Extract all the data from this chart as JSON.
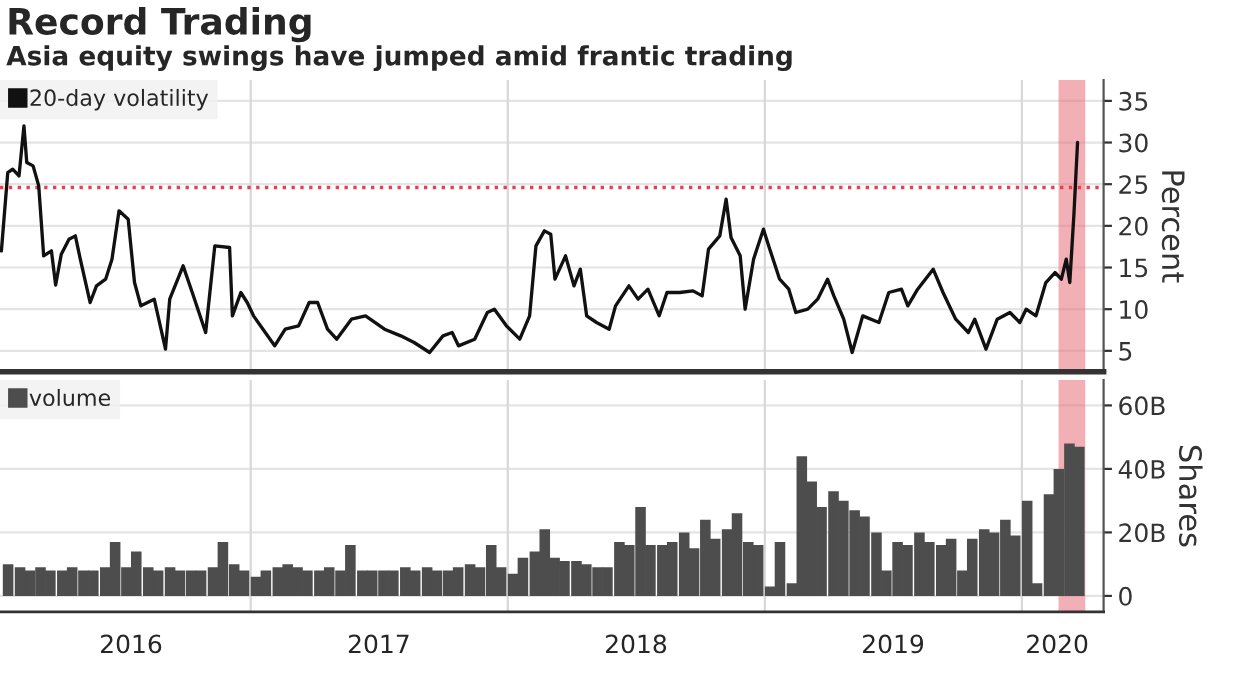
{
  "chart_data": [
    {
      "type": "line",
      "title": "Record Trading",
      "subtitle": "Asia equity swings have jumped amid frantic trading",
      "ylabel": "Percent",
      "xlim": [
        "2016-01-11",
        "2020-04-26"
      ],
      "xticks": [
        {
          "value": "2017-01-01",
          "label": null
        },
        {
          "value": "2018-01-01",
          "label": null
        },
        {
          "value": "2019-01-01",
          "label": null
        },
        {
          "value": "2020-01-01",
          "label": null
        }
      ],
      "ylim": [
        2.5,
        37.5
      ],
      "yticks": [
        5,
        10,
        15,
        20,
        25,
        30,
        35
      ],
      "tick_labels": "y",
      "grid": true,
      "legend": "top left",
      "line_style": "solid",
      "series": [
        {
          "name": "20-day volatility",
          "color": "#111111",
          "x": [
            "2016-01-13",
            "2016-01-22",
            "2016-01-29",
            "2016-02-07",
            "2016-02-14",
            "2016-02-18",
            "2016-02-27",
            "2016-03-06",
            "2016-03-13",
            "2016-03-24",
            "2016-03-30",
            "2016-04-07",
            "2016-04-18",
            "2016-04-27",
            "2016-05-04",
            "2016-05-18",
            "2016-05-27",
            "2016-06-09",
            "2016-06-18",
            "2016-06-28",
            "2016-07-11",
            "2016-07-20",
            "2016-07-29",
            "2016-08-17",
            "2016-09-02",
            "2016-09-08",
            "2016-09-27",
            "2016-10-10",
            "2016-10-29",
            "2016-11-11",
            "2016-12-02",
            "2016-12-06",
            "2016-12-18",
            "2016-12-27",
            "2017-01-05",
            "2017-02-04",
            "2017-02-19",
            "2017-03-10",
            "2017-03-25",
            "2017-04-06",
            "2017-04-20",
            "2017-05-03",
            "2017-05-24",
            "2017-06-13",
            "2017-07-10",
            "2017-08-02",
            "2017-08-21",
            "2017-09-12",
            "2017-10-01",
            "2017-10-14",
            "2017-10-23",
            "2017-11-15",
            "2017-12-03",
            "2017-12-13",
            "2017-12-30",
            "2018-01-18",
            "2018-02-01",
            "2018-02-10",
            "2018-02-22",
            "2018-03-03",
            "2018-03-09",
            "2018-03-24",
            "2018-04-05",
            "2018-04-14",
            "2018-04-23",
            "2018-05-07",
            "2018-05-25",
            "2018-06-03",
            "2018-06-22",
            "2018-07-05",
            "2018-07-19",
            "2018-08-04",
            "2018-08-15",
            "2018-09-02",
            "2018-09-21",
            "2018-10-04",
            "2018-10-13",
            "2018-10-29",
            "2018-11-07",
            "2018-11-14",
            "2018-11-27",
            "2018-12-04",
            "2018-12-16",
            "2018-12-30",
            "2019-01-08",
            "2019-01-22",
            "2019-02-04",
            "2019-02-14",
            "2019-03-03",
            "2019-03-17",
            "2019-03-31",
            "2019-04-09",
            "2019-04-23",
            "2019-05-05",
            "2019-05-20",
            "2019-06-12",
            "2019-06-26",
            "2019-07-14",
            "2019-07-23",
            "2019-08-06",
            "2019-08-28",
            "2019-09-11",
            "2019-09-29",
            "2019-10-17",
            "2019-10-26",
            "2019-11-11",
            "2019-11-27",
            "2019-12-15",
            "2019-12-29",
            "2020-01-07",
            "2020-01-21",
            "2020-02-04",
            "2020-02-17",
            "2020-02-26",
            "2020-03-04",
            "2020-03-09",
            "2020-03-15",
            "2020-03-20"
          ],
          "values": [
            17.0,
            26.4,
            26.8,
            26.0,
            32.0,
            27.6,
            27.2,
            24.8,
            16.4,
            17.0,
            12.9,
            16.6,
            18.4,
            18.8,
            16.0,
            10.8,
            12.8,
            13.6,
            16.0,
            21.8,
            20.8,
            13.2,
            10.4,
            11.2,
            5.2,
            11.2,
            15.2,
            12.0,
            7.2,
            17.6,
            17.4,
            9.2,
            12.0,
            10.8,
            9.2,
            5.6,
            7.6,
            8.0,
            10.8,
            10.8,
            7.6,
            6.4,
            8.8,
            9.2,
            7.6,
            6.8,
            6.0,
            4.8,
            6.8,
            7.2,
            5.6,
            6.4,
            9.6,
            10.0,
            8.0,
            6.4,
            9.2,
            17.6,
            19.4,
            19.0,
            13.6,
            16.4,
            12.8,
            14.8,
            9.2,
            8.4,
            7.6,
            10.4,
            12.8,
            11.2,
            12.4,
            9.2,
            12.0,
            12.0,
            12.2,
            11.6,
            17.2,
            18.8,
            23.2,
            18.6,
            16.4,
            10.0,
            16.0,
            19.6,
            17.2,
            13.6,
            12.4,
            9.6,
            10.0,
            11.2,
            13.6,
            11.6,
            8.8,
            4.8,
            9.2,
            8.4,
            12.0,
            12.4,
            10.4,
            12.4,
            14.8,
            12.0,
            8.8,
            7.2,
            8.8,
            5.2,
            8.8,
            9.6,
            8.4,
            10.0,
            9.2,
            13.2,
            14.4,
            13.6,
            16.0,
            13.2,
            21.6,
            30.0
          ]
        }
      ],
      "ref_lines": [
        {
          "axis": "y",
          "value": 24.6,
          "color": "#e8404f",
          "line_style": "dotted"
        }
      ],
      "bands": [
        {
          "axis": "x",
          "from": "2020-02-24",
          "to": "2020-03-29",
          "color": "#e8707a"
        }
      ]
    },
    {
      "type": "bar",
      "ylabel": "Shares",
      "xlim": [
        "2016-01-11",
        "2020-04-26"
      ],
      "xticks": [
        {
          "value": "2016-07-15",
          "label": "2016"
        },
        {
          "value": "2017-01-01",
          "label": null
        },
        {
          "value": "2017-07-02",
          "label": "2017"
        },
        {
          "value": "2018-01-01",
          "label": null
        },
        {
          "value": "2018-07-02",
          "label": "2018"
        },
        {
          "value": "2019-01-01",
          "label": null
        },
        {
          "value": "2019-07-02",
          "label": "2019"
        },
        {
          "value": "2020-01-01",
          "label": null
        },
        {
          "value": "2020-02-20",
          "label": "2020"
        }
      ],
      "ylim": [
        -5,
        68
      ],
      "yticks": [
        0,
        {
          "value": 20,
          "label": "20B"
        },
        {
          "value": 40,
          "label": "40B"
        },
        {
          "value": 60,
          "label": "60B"
        }
      ],
      "grid": true,
      "legend": "top left",
      "series": [
        {
          "name": "volume",
          "color": "#4d4d4d",
          "x": [
            "2016-01-15",
            "2016-02-01",
            "2016-02-15",
            "2016-03-01",
            "2016-03-15",
            "2016-04-01",
            "2016-04-15",
            "2016-05-01",
            "2016-05-15",
            "2016-06-01",
            "2016-06-15",
            "2016-07-01",
            "2016-07-15",
            "2016-08-01",
            "2016-08-15",
            "2016-09-01",
            "2016-09-15",
            "2016-10-01",
            "2016-10-15",
            "2016-11-01",
            "2016-11-15",
            "2016-12-01",
            "2016-12-15",
            "2017-01-01",
            "2017-01-15",
            "2017-02-01",
            "2017-02-15",
            "2017-03-01",
            "2017-03-15",
            "2017-04-01",
            "2017-04-15",
            "2017-05-01",
            "2017-05-15",
            "2017-06-01",
            "2017-06-15",
            "2017-07-01",
            "2017-07-15",
            "2017-08-01",
            "2017-08-15",
            "2017-09-01",
            "2017-09-15",
            "2017-10-01",
            "2017-10-15",
            "2017-11-01",
            "2017-11-15",
            "2017-12-01",
            "2017-12-15",
            "2018-01-01",
            "2018-01-15",
            "2018-02-01",
            "2018-02-15",
            "2018-03-01",
            "2018-03-15",
            "2018-04-01",
            "2018-04-15",
            "2018-05-01",
            "2018-05-15",
            "2018-06-01",
            "2018-06-15",
            "2018-07-01",
            "2018-07-15",
            "2018-08-01",
            "2018-08-15",
            "2018-09-01",
            "2018-09-15",
            "2018-10-01",
            "2018-10-15",
            "2018-11-01",
            "2018-11-15",
            "2018-12-01",
            "2018-12-15",
            "2019-01-01",
            "2019-01-15",
            "2019-02-01",
            "2019-02-15",
            "2019-03-01",
            "2019-03-15",
            "2019-04-01",
            "2019-04-15",
            "2019-05-01",
            "2019-05-15",
            "2019-06-01",
            "2019-06-15",
            "2019-07-01",
            "2019-07-15",
            "2019-08-01",
            "2019-08-15",
            "2019-09-01",
            "2019-09-15",
            "2019-10-01",
            "2019-10-15",
            "2019-11-01",
            "2019-11-15",
            "2019-12-01",
            "2019-12-15",
            "2020-01-01",
            "2020-01-15",
            "2020-02-01",
            "2020-02-15",
            "2020-03-01",
            "2020-03-15"
          ],
          "values": [
            10,
            9,
            8,
            9,
            8,
            8,
            9,
            8,
            8,
            9,
            17,
            9,
            14,
            9,
            8,
            9,
            8,
            8,
            8,
            9,
            17,
            10,
            8,
            6,
            8,
            9,
            10,
            9,
            8,
            8,
            9,
            8,
            16,
            8,
            8,
            8,
            8,
            9,
            8,
            9,
            8,
            8,
            9,
            10,
            9,
            16,
            9,
            7,
            12,
            14,
            21,
            12,
            11,
            11,
            10,
            9,
            9,
            17,
            16,
            28,
            16,
            16,
            17,
            20,
            15,
            24,
            18,
            21,
            26,
            17,
            16,
            3,
            17,
            4,
            44,
            36,
            28,
            33,
            30,
            27,
            25,
            20,
            8,
            17,
            16,
            20,
            17,
            16,
            18,
            8,
            18,
            21,
            20,
            24,
            19,
            30,
            4,
            32,
            40,
            48,
            47
          ]
        }
      ],
      "bands": [
        {
          "axis": "x",
          "from": "2020-02-24",
          "to": "2020-03-29",
          "color": "#e8707a"
        }
      ]
    }
  ]
}
